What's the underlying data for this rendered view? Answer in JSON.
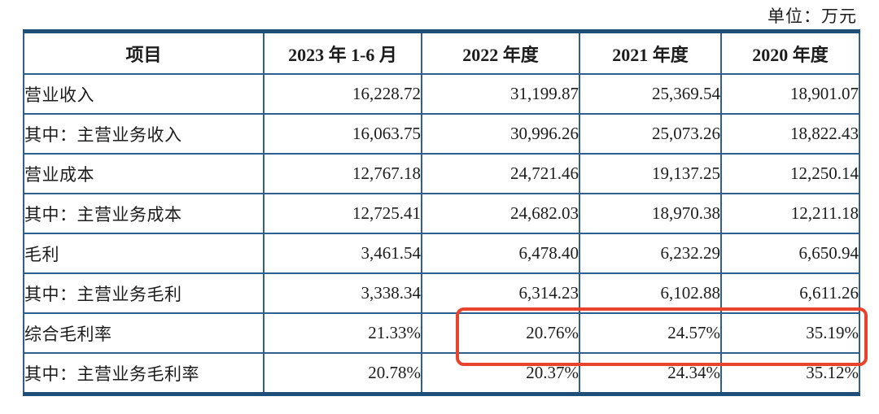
{
  "unit_note": "单位：万元",
  "table": {
    "columns": {
      "project": "项目",
      "h1_2023": "2023 年 1-6 月",
      "fy_2022": "2022 年度",
      "fy_2021": "2021 年度",
      "fy_2020": "2020 年度"
    },
    "rows": [
      {
        "label": "营业收入",
        "values": [
          "16,228.72",
          "31,199.87",
          "25,369.54",
          "18,901.07"
        ]
      },
      {
        "label": "其中：主营业务收入",
        "values": [
          "16,063.75",
          "30,996.26",
          "25,073.26",
          "18,822.43"
        ]
      },
      {
        "label": "营业成本",
        "values": [
          "12,767.18",
          "24,721.46",
          "19,137.25",
          "12,250.14"
        ]
      },
      {
        "label": "其中：主营业务成本",
        "values": [
          "12,725.41",
          "24,682.03",
          "18,970.38",
          "12,211.18"
        ]
      },
      {
        "label": "毛利",
        "values": [
          "3,461.54",
          "6,478.40",
          "6,232.29",
          "6,650.94"
        ]
      },
      {
        "label": "其中：主营业务毛利",
        "values": [
          "3,338.34",
          "6,314.23",
          "6,102.88",
          "6,611.26"
        ]
      },
      {
        "label": "综合毛利率",
        "values": [
          "21.33%",
          "20.76%",
          "24.57%",
          "35.19%"
        ]
      },
      {
        "label": "其中：主营业务毛利率",
        "values": [
          "20.78%",
          "20.37%",
          "24.34%",
          "35.12%"
        ]
      }
    ]
  },
  "annotation": {
    "type": "red-rounded-rectangle",
    "target": "综合毛利率 values for 2022年度 / 2021年度 / 2020年度",
    "color": "#e8432c"
  },
  "colors": {
    "border_thick": "#1f4e79",
    "border_thin": "#2e5f8e",
    "text": "#1c1c1c"
  }
}
